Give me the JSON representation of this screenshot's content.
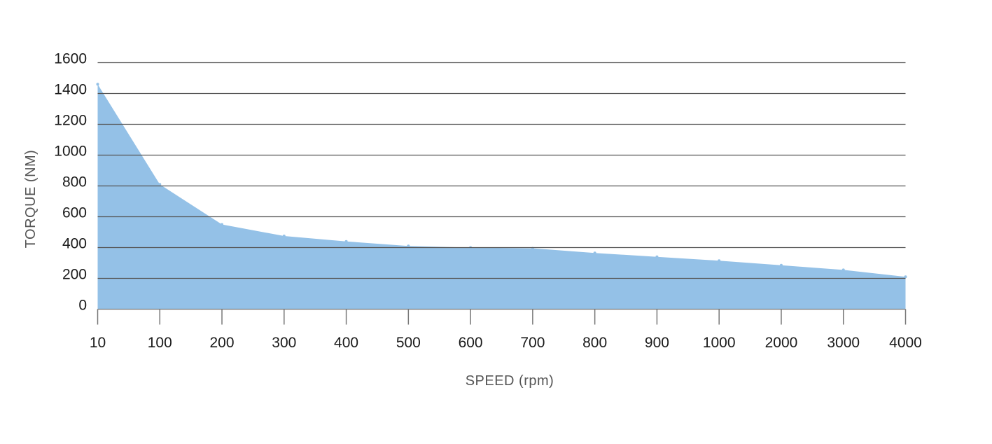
{
  "chart_data": {
    "type": "area",
    "title": "",
    "xlabel": "SPEED (rpm)",
    "ylabel": "TORQUE (NM)",
    "x_is_categorical": true,
    "categories": [
      "10",
      "100",
      "200",
      "300",
      "400",
      "500",
      "600",
      "700",
      "800",
      "900",
      "1000",
      "2000",
      "3000",
      "4000"
    ],
    "ylim": [
      0,
      1600
    ],
    "yticks": [
      0,
      200,
      400,
      600,
      800,
      1000,
      1200,
      1400,
      1600
    ],
    "grid": "horizontal",
    "legend": "none",
    "fill_color": "#94c1e7",
    "grid_color": "#555555",
    "series": [
      {
        "values": [
          1460,
          810,
          550,
          475,
          440,
          410,
          400,
          395,
          365,
          340,
          315,
          285,
          255,
          210
        ]
      }
    ]
  }
}
